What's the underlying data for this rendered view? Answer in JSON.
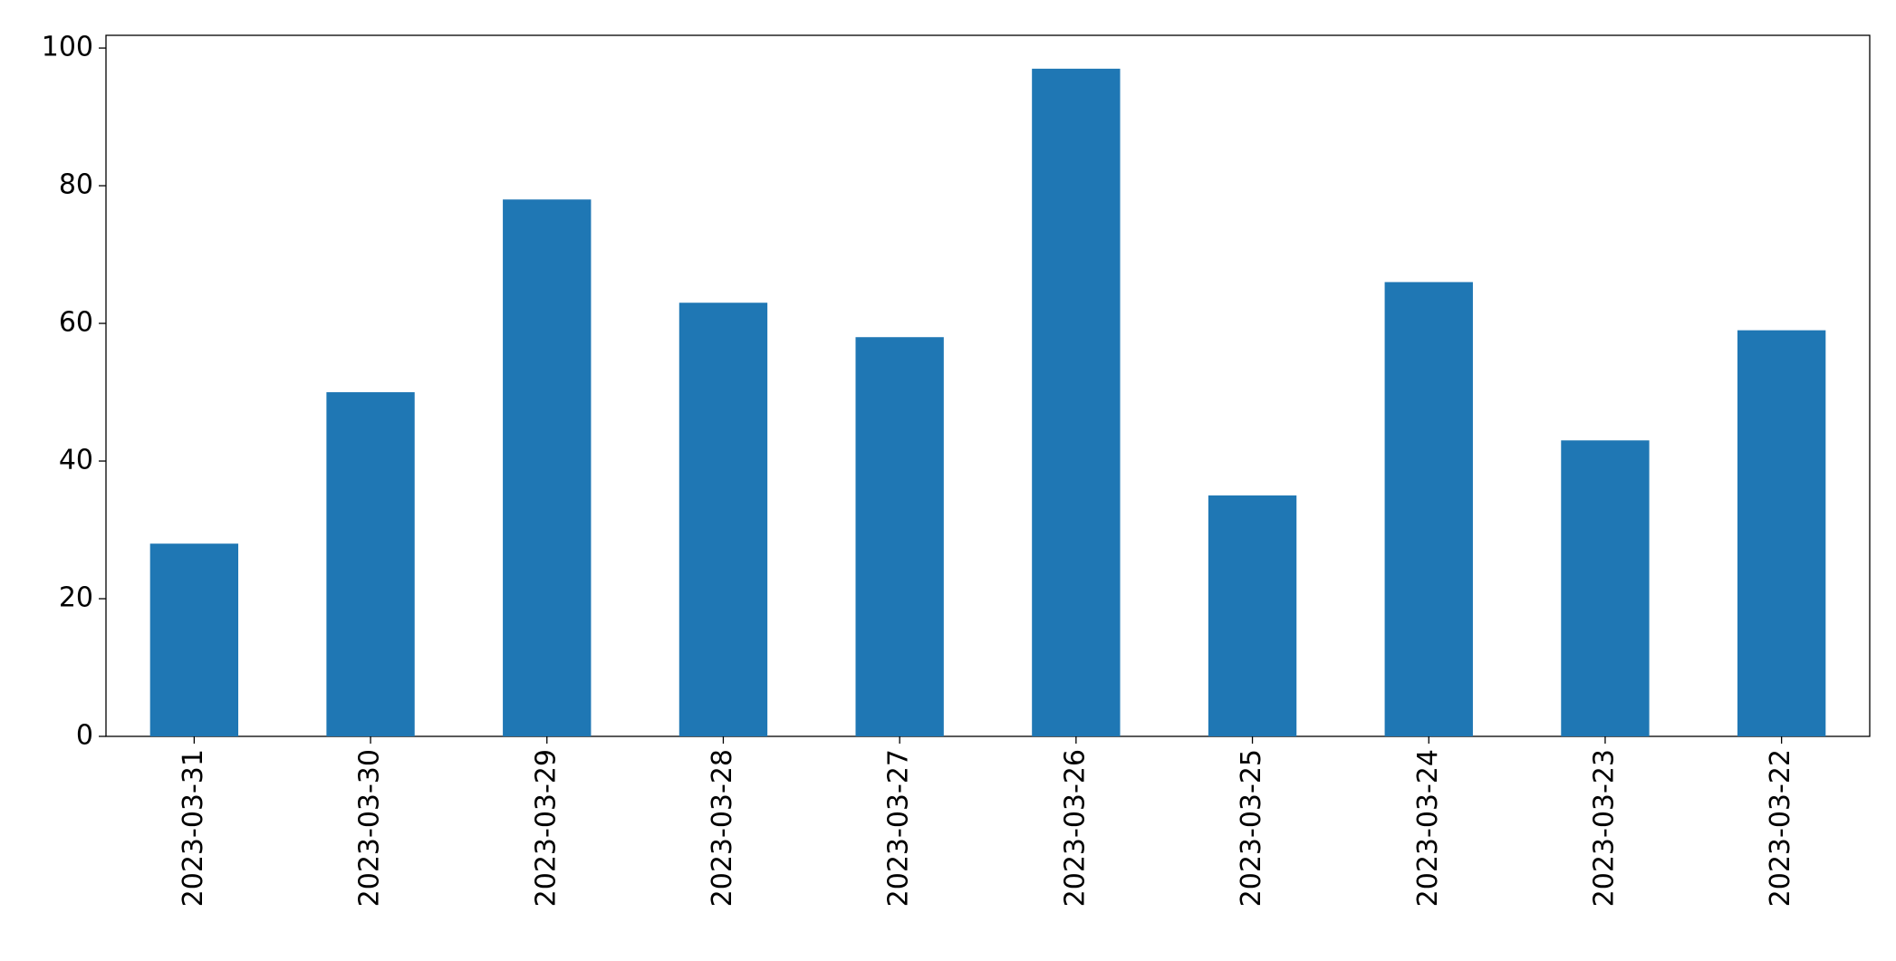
{
  "chart_data": {
    "type": "bar",
    "categories": [
      "2023-03-31",
      "2023-03-30",
      "2023-03-29",
      "2023-03-28",
      "2023-03-27",
      "2023-03-26",
      "2023-03-25",
      "2023-03-24",
      "2023-03-23",
      "2023-03-22"
    ],
    "values": [
      28,
      50,
      78,
      63,
      58,
      97,
      35,
      66,
      43,
      59
    ],
    "color": "#1f77b4",
    "ylim": [
      0,
      101.85
    ],
    "yticks": [
      0,
      20,
      40,
      60,
      80,
      100
    ],
    "grid": false
  }
}
